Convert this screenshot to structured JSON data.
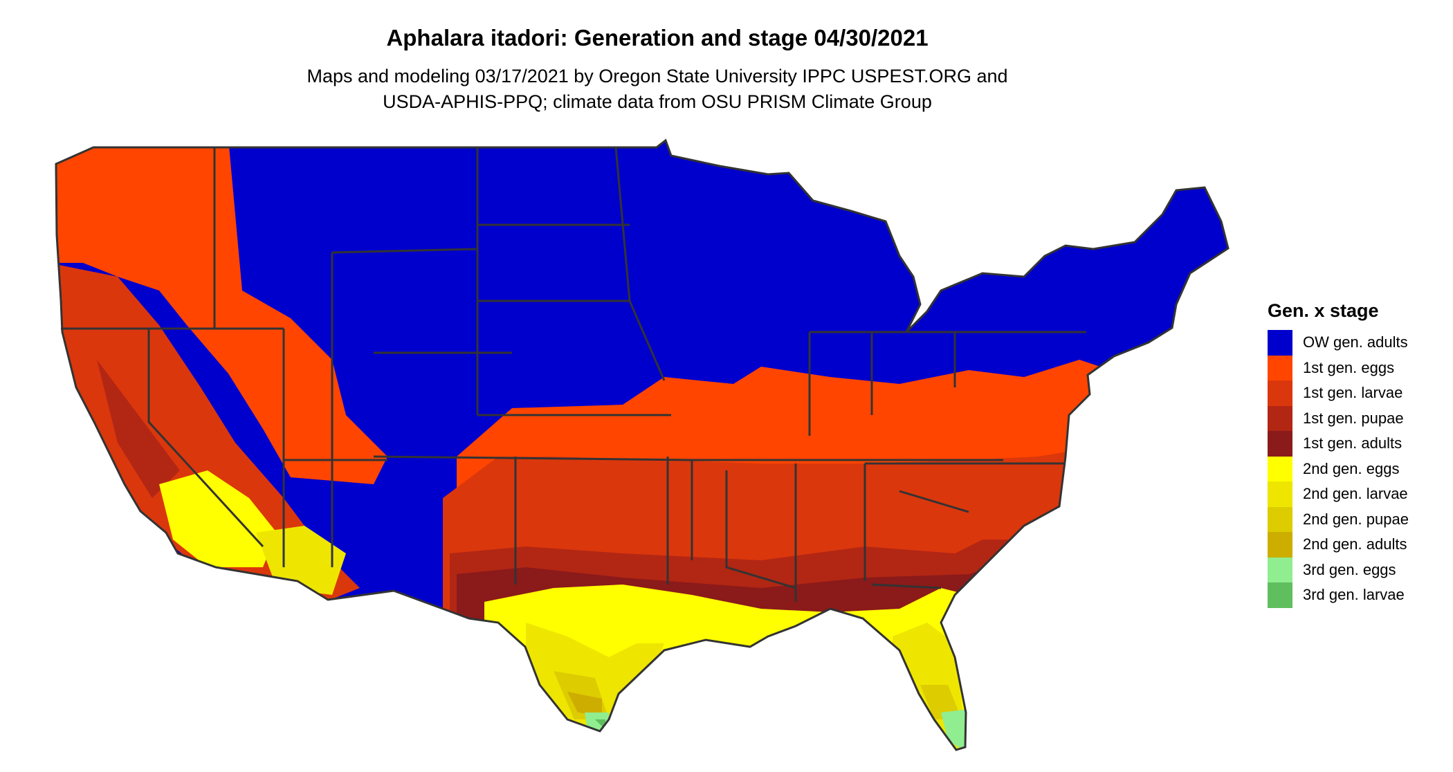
{
  "title": "Aphalara itadori: Generation and stage 04/30/2021",
  "subtitle_lines": [
    "Maps and modeling 03/17/2021 by Oregon State University IPPC USPEST.ORG and",
    "USDA-APHIS-PPQ; climate data from OSU PRISM Climate Group"
  ],
  "chart_data": {
    "type": "map",
    "region": "Contiguous United States",
    "legend_title": "Gen. x stage",
    "legend_placement": "right",
    "categories": [
      {
        "label": "OW gen. adults",
        "color": "#0000cd"
      },
      {
        "label": "1st gen. eggs",
        "color": "#ff4500"
      },
      {
        "label": "1st gen. larvae",
        "color": "#db370c"
      },
      {
        "label": "1st gen. pupae",
        "color": "#b22614"
      },
      {
        "label": "1st gen. adults",
        "color": "#8b1a1a"
      },
      {
        "label": "2nd gen. eggs",
        "color": "#ffff00"
      },
      {
        "label": "2nd gen. larvae",
        "color": "#eee600"
      },
      {
        "label": "2nd gen. pupae",
        "color": "#ddcc00"
      },
      {
        "label": "2nd gen. adults",
        "color": "#cdad00"
      },
      {
        "label": "3rd gen. eggs",
        "color": "#90ee90"
      },
      {
        "label": "3rd gen. larvae",
        "color": "#5fbf5f"
      }
    ]
  }
}
